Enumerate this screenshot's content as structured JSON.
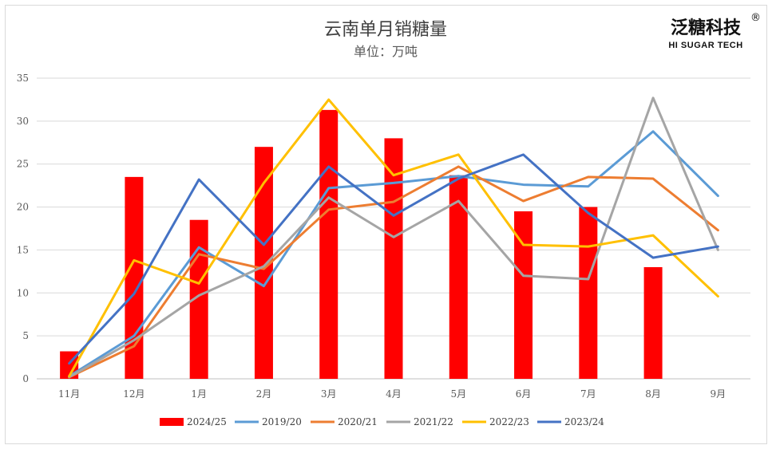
{
  "brand": {
    "name_cn": "泛糖科技",
    "name_en": "HI SUGAR TECH",
    "registered": "®"
  },
  "chart_data": {
    "type": "bar+line",
    "title": "云南单月销糖量",
    "subtitle": "单位：万吨",
    "categories": [
      "11月",
      "12月",
      "1月",
      "2月",
      "3月",
      "4月",
      "5月",
      "6月",
      "7月",
      "8月",
      "9月"
    ],
    "ylim": [
      0,
      35
    ],
    "yticks": [
      0,
      5,
      10,
      15,
      20,
      25,
      30,
      35
    ],
    "grid": true,
    "legend_position": "bottom",
    "bar_series": {
      "name": "2024/25",
      "color": "#ff0000",
      "values": [
        3.2,
        23.5,
        18.5,
        27.0,
        31.3,
        28.0,
        23.7,
        19.5,
        20.0,
        13.0,
        null
      ]
    },
    "line_series": [
      {
        "name": "2019/20",
        "color": "#5b9bd5",
        "values": [
          0.3,
          5.0,
          15.3,
          10.8,
          22.2,
          22.8,
          23.6,
          22.6,
          22.4,
          28.8,
          21.3
        ]
      },
      {
        "name": "2020/21",
        "color": "#ed7d31",
        "values": [
          0.2,
          3.8,
          14.5,
          12.8,
          19.7,
          20.6,
          24.7,
          20.7,
          23.5,
          23.3,
          17.3
        ]
      },
      {
        "name": "2021/22",
        "color": "#a5a5a5",
        "values": [
          0.2,
          4.5,
          9.7,
          13.1,
          21.1,
          16.5,
          20.7,
          12.0,
          11.6,
          32.7,
          15.0
        ]
      },
      {
        "name": "2022/23",
        "color": "#ffc000",
        "values": [
          0.3,
          13.8,
          11.1,
          22.8,
          32.5,
          23.7,
          26.1,
          15.6,
          15.4,
          16.7,
          9.6
        ]
      },
      {
        "name": "2023/24",
        "color": "#4472c4",
        "values": [
          1.8,
          9.9,
          23.2,
          15.6,
          24.7,
          19.0,
          23.3,
          26.1,
          19.3,
          14.1,
          15.4
        ]
      }
    ]
  }
}
